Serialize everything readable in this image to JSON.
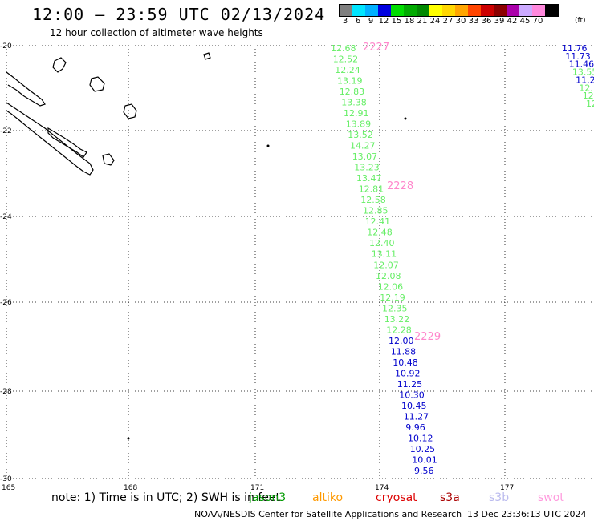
{
  "title": "12:00 – 23:59 UTC 02/13/2024",
  "subtitle": "12 hour collection of altimeter wave heights",
  "legend": {
    "labels": [
      "3",
      "6",
      "9",
      "12",
      "15",
      "18",
      "21",
      "24",
      "27",
      "30",
      "33",
      "36",
      "39",
      "42",
      "45",
      "70"
    ],
    "unit": "(ft)",
    "colors": [
      "#7f7f7f",
      "#00e5ff",
      "#00b0ff",
      "#0000e0",
      "#00dd00",
      "#00aa00",
      "#008800",
      "#ffff00",
      "#ffd700",
      "#ffa500",
      "#ff4500",
      "#cc0000",
      "#8b0000",
      "#aa00aa",
      "#ccaaff",
      "#ff88dd",
      "#000000"
    ]
  },
  "axes": {
    "lat_labels": [
      "-20",
      "-22",
      "-24",
      "-26",
      "-28",
      "-30"
    ],
    "lon_labels": [
      "165",
      "168",
      "171",
      "174",
      "177"
    ]
  },
  "track_colors": {
    "green": "#66ee66",
    "blue": "#0000cc",
    "pink": "#ff88cc"
  },
  "track_a": [
    {
      "v": "12.68",
      "c": "green"
    },
    {
      "v": "12.52",
      "c": "green"
    },
    {
      "v": "12.24",
      "c": "green"
    },
    {
      "v": "13.19",
      "c": "green"
    },
    {
      "v": "12.83",
      "c": "green"
    },
    {
      "v": "13.38",
      "c": "green"
    },
    {
      "v": "12.91",
      "c": "green"
    },
    {
      "v": "13.89",
      "c": "green"
    },
    {
      "v": "13.52",
      "c": "green"
    },
    {
      "v": "14.27",
      "c": "green"
    },
    {
      "v": "13.07",
      "c": "green"
    },
    {
      "v": "13.23",
      "c": "green"
    },
    {
      "v": "13.47",
      "c": "green"
    },
    {
      "v": "12.81",
      "c": "green"
    },
    {
      "v": "12.58",
      "c": "green"
    },
    {
      "v": "12.85",
      "c": "green"
    },
    {
      "v": "12.41",
      "c": "green"
    },
    {
      "v": "12.48",
      "c": "green"
    },
    {
      "v": "12.40",
      "c": "green"
    },
    {
      "v": "13.11",
      "c": "green"
    },
    {
      "v": "12.07",
      "c": "green"
    },
    {
      "v": "12.08",
      "c": "green"
    },
    {
      "v": "12.06",
      "c": "green"
    },
    {
      "v": "12.19",
      "c": "green"
    },
    {
      "v": "12.35",
      "c": "green"
    },
    {
      "v": "13.22",
      "c": "green"
    },
    {
      "v": "12.28",
      "c": "green"
    },
    {
      "v": "12.00",
      "c": "blue"
    },
    {
      "v": "11.88",
      "c": "blue"
    },
    {
      "v": "10.48",
      "c": "blue"
    },
    {
      "v": "10.92",
      "c": "blue"
    },
    {
      "v": "11.25",
      "c": "blue"
    },
    {
      "v": "10.30",
      "c": "blue"
    },
    {
      "v": "10.45",
      "c": "blue"
    },
    {
      "v": "11.27",
      "c": "blue"
    },
    {
      "v": "9.96",
      "c": "blue"
    },
    {
      "v": "10.12",
      "c": "blue"
    },
    {
      "v": "10.25",
      "c": "blue"
    },
    {
      "v": "10.01",
      "c": "blue"
    },
    {
      "v": "9.56",
      "c": "blue"
    }
  ],
  "time_labels": [
    "2227",
    "2228",
    "2229"
  ],
  "track_b": [
    {
      "v": "11.76",
      "c": "blue"
    },
    {
      "v": "11.73",
      "c": "blue"
    },
    {
      "v": "11.46",
      "c": "blue"
    },
    {
      "v": "13.55",
      "c": "green"
    },
    {
      "v": "11.2",
      "c": "blue"
    },
    {
      "v": "12.1",
      "c": "green"
    },
    {
      "v": "12.",
      "c": "green"
    },
    {
      "v": "12",
      "c": "green"
    }
  ],
  "note_prefix": "note:  1) Time is in UTC; 2) SWH is in feet",
  "satellites": [
    {
      "name": "jason3",
      "color": "#009900"
    },
    {
      "name": "altiko",
      "color": "#ff9900"
    },
    {
      "name": "cryosat",
      "color": "#dd0000"
    },
    {
      "name": "s3a",
      "color": "#aa0000"
    },
    {
      "name": "s3b",
      "color": "#bbbbee"
    },
    {
      "name": "swot",
      "color": "#ff99dd"
    }
  ],
  "credit": "NOAA/NESDIS Center for Satellite Applications and Research",
  "stamp": "13 Dec 23:36:13 UTC 2024"
}
